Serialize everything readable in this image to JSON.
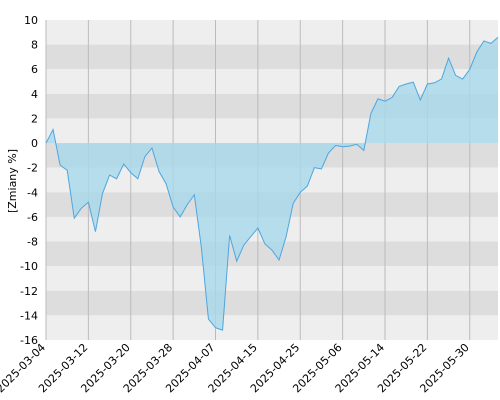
{
  "chart_data": {
    "type": "area",
    "ylabel": "[Zmiany %]",
    "ylim": [
      -16,
      10
    ],
    "y_ticks": [
      10,
      8,
      6,
      4,
      2,
      0,
      -2,
      -4,
      -6,
      -8,
      -10,
      -12,
      -14,
      -16
    ],
    "x_tick_labels": [
      "2025-03-04",
      "2025-03-12",
      "2025-03-20",
      "2025-03-28",
      "2025-04-07",
      "2025-04-15",
      "2025-04-25",
      "2025-05-06",
      "2025-05-14",
      "2025-05-22",
      "2025-05-30"
    ],
    "x_tick_index": [
      0,
      6,
      12,
      18,
      24,
      30,
      36,
      42,
      48,
      54,
      60
    ],
    "grid": true,
    "band_colors": [
      "#eeeeee",
      "#dddddd"
    ],
    "series": [
      {
        "line_color": "#4da6e0",
        "fill_color": "#a8d8ea",
        "values": [
          0.0,
          1.1,
          -1.8,
          -2.2,
          -6.1,
          -5.3,
          -4.8,
          -7.2,
          -4.1,
          -2.6,
          -2.9,
          -1.7,
          -2.4,
          -2.9,
          -1.1,
          -0.4,
          -2.3,
          -3.3,
          -5.2,
          -6.0,
          -5.0,
          -4.2,
          -8.5,
          -14.3,
          -15.0,
          -15.2,
          -7.5,
          -9.6,
          -8.3,
          -7.6,
          -6.9,
          -8.2,
          -8.7,
          -9.5,
          -7.6,
          -4.9,
          -4.0,
          -3.5,
          -2.0,
          -2.1,
          -0.8,
          -0.2,
          -0.3,
          -0.25,
          -0.1,
          -0.6,
          2.4,
          3.6,
          3.4,
          3.7,
          4.6,
          4.8,
          4.95,
          3.5,
          4.8,
          4.9,
          5.2,
          6.9,
          5.5,
          5.2,
          6.0,
          7.4,
          8.3,
          8.1,
          8.6
        ]
      }
    ]
  }
}
